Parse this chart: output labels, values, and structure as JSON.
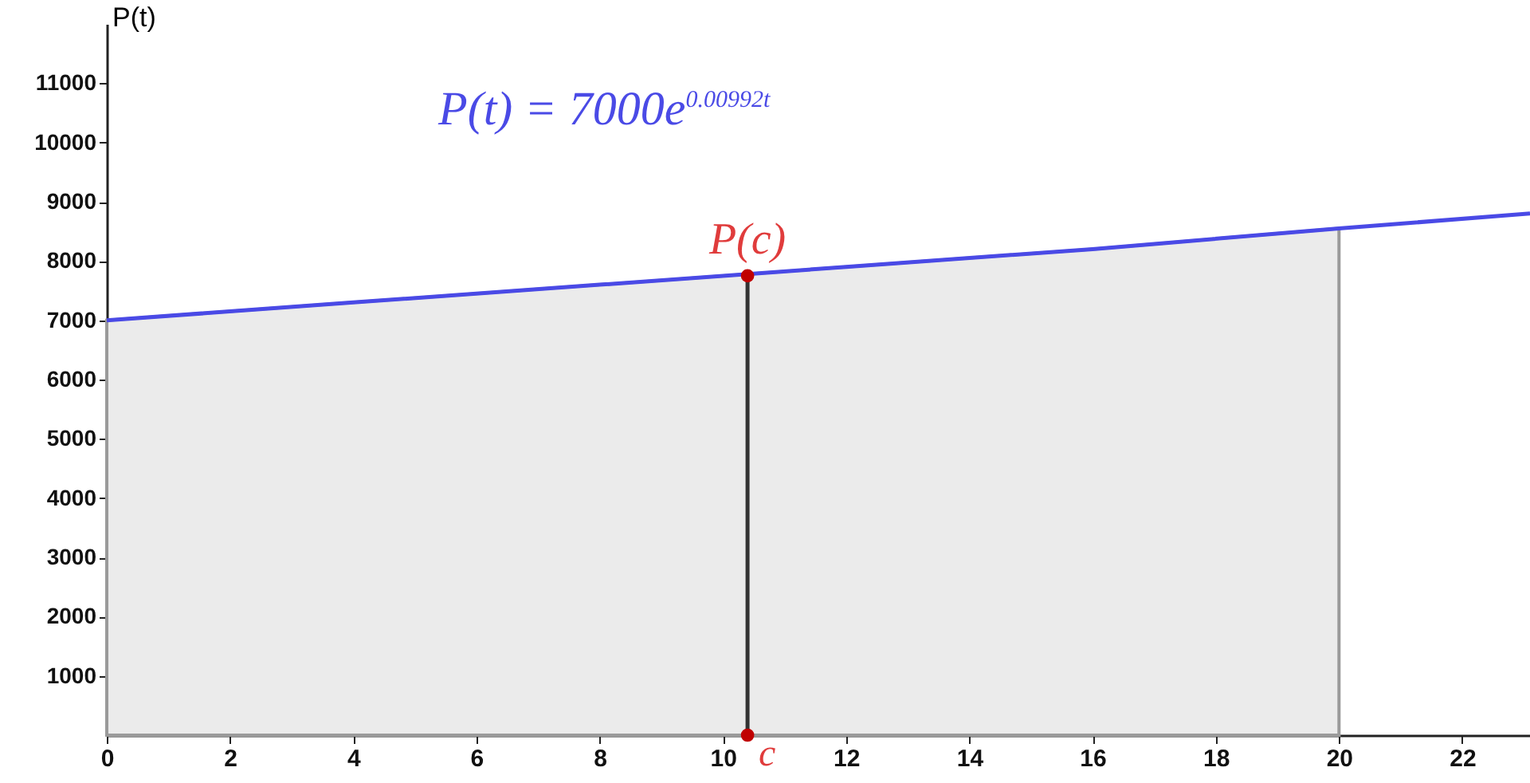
{
  "chart_data": {
    "type": "line",
    "ylabel": "P(t)",
    "xlim": [
      0,
      23.1
    ],
    "ylim": [
      0,
      12000
    ],
    "xticks": [
      0,
      2,
      4,
      6,
      8,
      10,
      12,
      14,
      16,
      18,
      20,
      22
    ],
    "yticks": [
      1000,
      2000,
      3000,
      4000,
      5000,
      6000,
      7000,
      8000,
      9000,
      10000,
      11000
    ],
    "series": [
      {
        "type": "area",
        "color": "#ebebeb",
        "x": [
          0,
          4,
          8,
          12,
          16,
          20
        ],
        "values": [
          7000,
          7300,
          7600,
          7900,
          8200,
          8550
        ]
      },
      {
        "color": "#333333",
        "x": [
          10.4,
          10.4
        ],
        "values": [
          0,
          7750
        ]
      },
      {
        "color": "#4a4ae6",
        "x": [
          0,
          4,
          8,
          12,
          16,
          20,
          23.1
        ],
        "values": [
          7000,
          7300,
          7600,
          7900,
          8200,
          8550,
          8800
        ]
      },
      {
        "type": "scatter",
        "color": "#c00000",
        "x": [
          10.4,
          10.4
        ],
        "values": [
          7750,
          0
        ]
      }
    ],
    "annotations": [
      "P(t) = 7000e$^{0.00992t}$",
      {
        "text": "P(c)",
        "x": 10.4,
        "y": 7750
      },
      {
        "text": "c",
        "x": 10.4,
        "y": 0
      }
    ]
  }
}
